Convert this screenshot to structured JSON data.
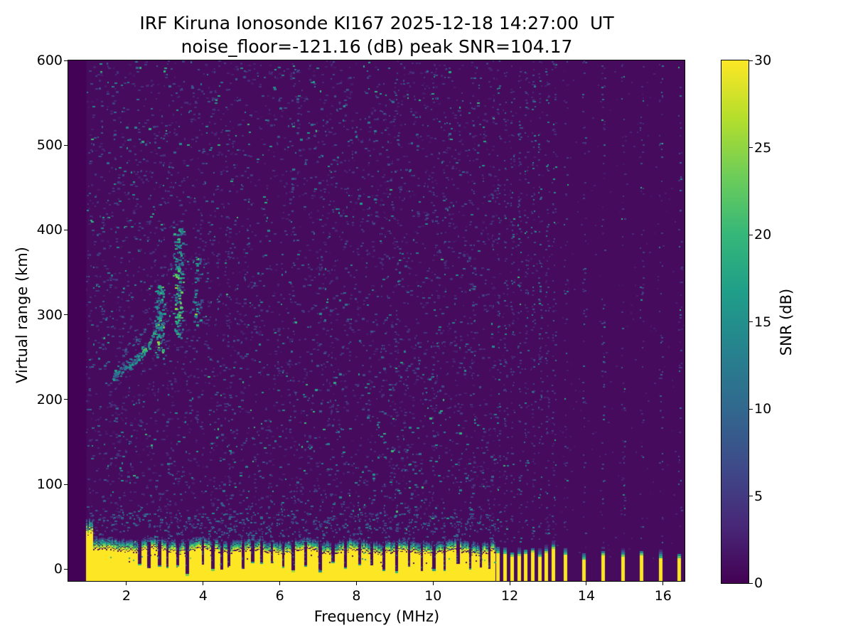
{
  "figure": {
    "title_line1": "IRF Kiruna Ionosonde KI167 2025-12-18 14:27:00  UT",
    "title_line2": "noise_floor=-121.16 (dB) peak SNR=104.17"
  },
  "chart_data": {
    "type": "heatmap",
    "title": "IRF Kiruna Ionosonde KI167 2025-12-18 14:27:00  UT",
    "subtitle": "noise_floor=-121.16 (dB) peak SNR=104.17",
    "station": "IRF Kiruna Ionosonde KI167",
    "timestamp_ut": "2025-12-18 14:27:00",
    "noise_floor_db": -121.16,
    "peak_snr_db": 104.17,
    "xlabel": "Frequency (MHz)",
    "ylabel": "Virtual range (km)",
    "colorbar_label": "SNR (dB)",
    "colormap": "viridis",
    "xlim": [
      0.48,
      16.56
    ],
    "ylim": [
      -14,
      600
    ],
    "snr_range_db": [
      0,
      30
    ],
    "x_ticks": [
      2,
      4,
      6,
      8,
      10,
      12,
      14,
      16
    ],
    "y_ticks": [
      0,
      100,
      200,
      300,
      400,
      500,
      600
    ],
    "colorbar_ticks": [
      0,
      5,
      10,
      15,
      20,
      25,
      30
    ],
    "palette": [
      "#440154",
      "#482878",
      "#3e4a89",
      "#31688e",
      "#26828e",
      "#1f9e89",
      "#35b779",
      "#6dcd59",
      "#b4de2c",
      "#fde725"
    ],
    "colors": {
      "background": "#470b5d",
      "no_data": "#440256",
      "yellow": "#fde725"
    },
    "features": {
      "data_start_mhz": 0.95,
      "ground_band": {
        "freq_start_mhz": 0.95,
        "freq_end_mhz": 11.62,
        "yellow_top_km": 22,
        "transition_top_km": 34,
        "left_plume_top_km": 44,
        "deep_notches_mhz": [
          3.55,
          4.22,
          6.32,
          7.02,
          9.02,
          9.98
        ],
        "shallow_notches_mhz": [
          2.3,
          2.55,
          2.82,
          3.05,
          3.3,
          3.98,
          4.45,
          4.65,
          5.02,
          5.25,
          5.5,
          5.78,
          6.08,
          6.65,
          7.35,
          7.68,
          8.05,
          8.38,
          8.68,
          9.35,
          9.68,
          10.28,
          10.62,
          10.95,
          11.22,
          11.45
        ]
      },
      "transmitter_stripes": {
        "narrow_group_mhz": [
          11.7,
          11.88,
          12.06,
          12.24,
          12.42,
          12.6,
          12.78,
          12.96,
          13.14
        ],
        "wide_group_mhz": [
          13.45,
          13.93,
          14.43,
          14.95,
          15.43,
          15.93,
          16.43
        ],
        "stripe_width_mhz": 0.09
      },
      "echo_trace": {
        "arc": {
          "f0": 1.65,
          "km0": 227,
          "f1": 2.9,
          "km1": 300,
          "points": 120
        },
        "arc_upper": {
          "f0": 1.95,
          "km0": 258,
          "f1": 2.5,
          "km1": 280,
          "points": 26
        },
        "columns": [
          {
            "f0": 2.72,
            "f1": 3.0,
            "km0": 250,
            "km1": 335,
            "points": 95,
            "bright": 0.22
          },
          {
            "f0": 3.2,
            "f1": 3.5,
            "km0": 272,
            "km1": 402,
            "points": 135,
            "bright": 0.32
          },
          {
            "f0": 3.7,
            "f1": 3.95,
            "km0": 288,
            "km1": 368,
            "points": 42,
            "bright": 0.06
          }
        ],
        "halo_points": 70
      },
      "noise": {
        "main_speckles": 4600,
        "band_fringe_speckles": 420,
        "right_speckles": 280,
        "narrow_column_speckles": 85,
        "wide_column_speckles": 50,
        "faint_columns_mhz": [
          4.63,
          6.3,
          7.33,
          9.03,
          10.0,
          11.0
        ]
      }
    }
  }
}
